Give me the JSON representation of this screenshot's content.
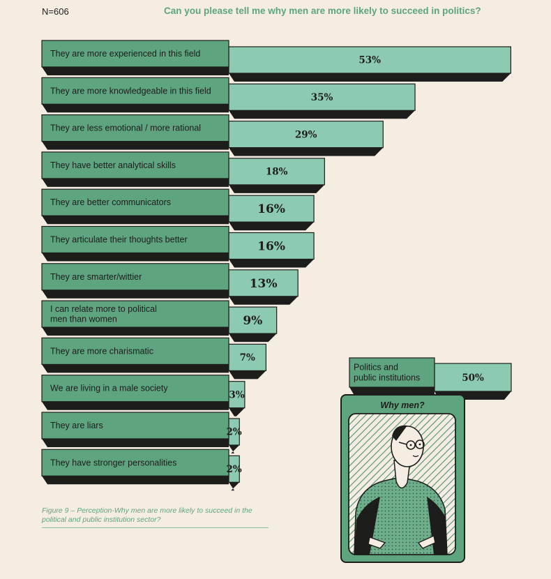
{
  "header": {
    "sample_size": "N=606",
    "question": "Can you please tell me why men are more likely to succeed in politics?"
  },
  "chart_data": {
    "type": "bar",
    "orientation": "horizontal",
    "categories": [
      "They are more experienced in this field",
      "They are more knowledgeable in this field",
      "They are less emotional / more rational",
      "They have better analytical skills",
      "They are better communicators",
      "They articulate their thoughts better",
      "They are smarter/wittier",
      "I can relate more to political\nmen than women",
      "They are more charismatic",
      "We are living in a male society",
      "They are liars",
      "They have stronger personalities"
    ],
    "values": [
      53,
      35,
      29,
      18,
      16,
      16,
      13,
      9,
      7,
      3,
      2,
      2
    ],
    "value_labels": [
      "53%",
      "35%",
      "29%",
      "18%",
      "16%",
      "16%",
      "13%",
      "9%",
      "7%",
      "3%",
      "2%",
      "2%"
    ],
    "unit": "%",
    "colors": {
      "label_fill": "#5ea47f",
      "bar_fill": "#8ccbb1",
      "shadow": "#1d1d1b"
    }
  },
  "inset": {
    "label": "Politics and\npublic institutions",
    "value": 50,
    "value_label": "50%"
  },
  "illustration": {
    "title": "Why men?",
    "icon": "man-with-glasses-illustration"
  },
  "caption": "Figure 9 – Perception-Why men are more likely to succeed in the political and public institution sector?",
  "colors": {
    "background": "#f5ede2",
    "accent": "#5ea47f"
  }
}
